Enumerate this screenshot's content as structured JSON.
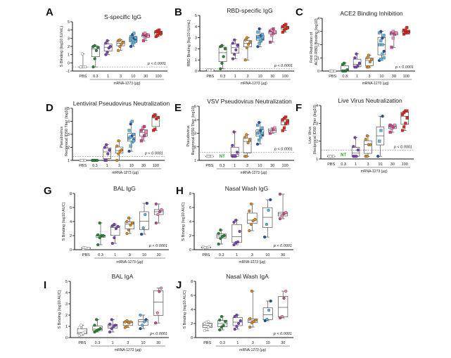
{
  "figure": {
    "colors": {
      "PBS": "#888888",
      "0.3": "#1f8a2e",
      "1": "#7b3fbf",
      "3": "#e08a1e",
      "10": "#1f4fb5",
      "10b": "#5ab4e0",
      "30": "#d6408a",
      "30b": "#f08cc0",
      "100": "#e0251b",
      "axis": "#111111",
      "threshold": "#888888"
    }
  },
  "chart_data": [
    {
      "letter": "A",
      "type": "box-scatter",
      "title": "S-specific IgG",
      "ylabel": "S Binding (log10 IU/mL)",
      "ylim": [
        -1,
        5
      ],
      "yticks": [
        -1,
        0,
        1,
        2,
        3,
        4,
        5
      ],
      "categories": [
        "PBS",
        "0.3",
        "1",
        "3",
        "10",
        "30",
        "100"
      ],
      "xlabel": "mRNA-1273 (µg)",
      "threshold": -0.5,
      "pvalue": "p < 0.0001",
      "series": [
        {
          "name": "PBS",
          "values": [
            -0.5,
            -0.5,
            -0.5,
            -0.5,
            -0.5,
            1.1
          ]
        },
        {
          "name": "0.3",
          "values": [
            -0.5,
            0.5,
            1.5,
            1.9,
            2.0,
            2.1
          ]
        },
        {
          "name": "1",
          "values": [
            1.0,
            1.3,
            1.8,
            2.0,
            2.4,
            2.7
          ]
        },
        {
          "name": "3",
          "values": [
            1.5,
            2.0,
            2.3,
            2.5,
            2.7,
            2.8
          ]
        },
        {
          "name": "10",
          "values": [
            2.0,
            2.3,
            2.5,
            2.7,
            2.8,
            2.9,
            3.0,
            3.1,
            3.2,
            3.4,
            3.6,
            2.6
          ]
        },
        {
          "name": "30",
          "values": [
            2.7,
            3.1,
            3.3,
            3.4,
            3.5,
            3.6,
            3.3,
            3.2
          ]
        },
        {
          "name": "100",
          "values": [
            3.2,
            3.4,
            3.6,
            3.7,
            3.8,
            3.9,
            4.0,
            3.5
          ]
        }
      ]
    },
    {
      "letter": "B",
      "type": "box-scatter",
      "title": "RBD-specific IgG",
      "ylabel": "RBD Binding (log10 IU/mL)",
      "ylim": [
        0,
        5
      ],
      "yticks": [
        0,
        1,
        2,
        3,
        4,
        5
      ],
      "categories": [
        "PBS",
        "0.3",
        "1",
        "3",
        "10",
        "30",
        "100"
      ],
      "xlabel": "mRNA-1273 (µg)",
      "threshold": 0.2,
      "pvalue": "p < 0.0001",
      "series": [
        {
          "name": "PBS",
          "values": [
            0.1,
            0.1,
            0.1,
            0.1,
            0.1,
            0.1
          ]
        },
        {
          "name": "0.3",
          "values": [
            0.2,
            0.7,
            1.3,
            2.0,
            2.2,
            2.3
          ]
        },
        {
          "name": "1",
          "values": [
            1.1,
            1.5,
            1.9,
            2.3,
            2.5,
            2.8
          ]
        },
        {
          "name": "3",
          "values": [
            1.0,
            2.1,
            2.4,
            2.6,
            2.8,
            3.0
          ]
        },
        {
          "name": "10",
          "values": [
            2.2,
            2.5,
            2.7,
            2.9,
            3.0,
            3.1,
            3.2,
            3.3,
            3.5,
            3.8,
            2.8,
            3.0
          ]
        },
        {
          "name": "30",
          "values": [
            2.6,
            3.2,
            3.4,
            3.5,
            3.6,
            3.7,
            3.8,
            3.5
          ]
        },
        {
          "name": "100",
          "values": [
            3.5,
            3.7,
            3.8,
            3.9,
            4.0,
            4.1,
            4.2,
            3.9
          ]
        }
      ]
    },
    {
      "letter": "C",
      "type": "box-scatter",
      "title": "ACE2 Binding Inhibition",
      "ylabel": "Fold Reduction of ACE2-RBD Binding (log10)",
      "ylim": [
        0,
        4
      ],
      "yticks": [
        0,
        1,
        2,
        3,
        4
      ],
      "categories": [
        "PBS",
        "0.3",
        "1",
        "3",
        "10",
        "30",
        "100"
      ],
      "xlabel": "mRNA-1273 (µg)",
      "threshold": null,
      "pvalue": "p < 0.0001",
      "series": [
        {
          "name": "PBS",
          "values": [
            0,
            0,
            0,
            0,
            0,
            0
          ]
        },
        {
          "name": "0.3",
          "values": [
            0,
            0,
            0,
            0.1,
            0.5,
            0.6
          ]
        },
        {
          "name": "1",
          "values": [
            0.3,
            0.3,
            0.4,
            0.6,
            1.0,
            1.3
          ]
        },
        {
          "name": "3",
          "values": [
            0.3,
            0.3,
            0.7,
            0.9,
            1.0,
            1.2
          ]
        },
        {
          "name": "10",
          "values": [
            0.8,
            0.9,
            1.3,
            1.5,
            2.0,
            2.3,
            2.5,
            2.7,
            2.9,
            3.0,
            2.0,
            1.0
          ]
        },
        {
          "name": "30",
          "values": [
            1.8,
            2.5,
            2.8,
            2.9,
            2.9,
            3.0,
            2.8,
            2.9
          ]
        },
        {
          "name": "100",
          "values": [
            2.8,
            2.9,
            3.0,
            3.0,
            3.1,
            3.1,
            3.3,
            2.9
          ]
        }
      ]
    },
    {
      "letter": "D",
      "type": "box-scatter",
      "title": "Lentiviral Pseudovirus Neutralization",
      "ylabel": "Pseudovirus Reciprocal ID50 Titer (log10)",
      "ylim": [
        1,
        5
      ],
      "yticks": [
        1,
        2,
        3,
        4,
        5
      ],
      "categories": [
        "PBS",
        "0.3",
        "1",
        "3",
        "10",
        "30",
        "100"
      ],
      "xlabel": "mRNA-1273 (µg)",
      "threshold": 1.3,
      "pvalue": "p < 0.0001",
      "series": [
        {
          "name": "PBS",
          "values": [
            1,
            1,
            1,
            1,
            1,
            1
          ]
        },
        {
          "name": "0.3",
          "values": [
            1,
            1,
            1,
            1,
            1,
            1
          ]
        },
        {
          "name": "1",
          "values": [
            1,
            1,
            1.5,
            1.8,
            2.0,
            2.2
          ]
        },
        {
          "name": "3",
          "values": [
            1,
            1.5,
            1.7,
            1.8,
            2.1,
            2.5
          ]
        },
        {
          "name": "10",
          "values": [
            1.7,
            2.1,
            2.4,
            2.6,
            2.7,
            2.8,
            2.9,
            3.0,
            3.3,
            3.8,
            4.0,
            2.5
          ]
        },
        {
          "name": "30",
          "values": [
            2.5,
            2.7,
            2.9,
            3.1,
            3.3,
            3.5,
            3.6,
            3.2
          ]
        },
        {
          "name": "100",
          "values": [
            3.3,
            3.4,
            4.2,
            4.3,
            4.4,
            4.5
          ]
        }
      ]
    },
    {
      "letter": "E",
      "type": "box-scatter",
      "title": "VSV Pseudovirus Neutralization",
      "ylabel": "Pseudovirus Reciprocal ID50 Titer (log10)",
      "ylim": [
        1,
        5
      ],
      "yticks": [
        1,
        2,
        3,
        4,
        5
      ],
      "categories": [
        "PBS",
        "0.3",
        "1",
        "3",
        "10",
        "30",
        "100"
      ],
      "xlabel": "mRNA-1273 (µg)",
      "threshold": 1.6,
      "pvalue": "p < 0.0001",
      "not_tested": [
        "0.3"
      ],
      "nt_label": "NT",
      "series": [
        {
          "name": "PBS",
          "values": [
            1.3,
            1.3,
            1.3,
            1.3,
            1.3,
            1.3
          ]
        },
        {
          "name": "0.3",
          "values": []
        },
        {
          "name": "1",
          "values": [
            1.3,
            1.3,
            1.3,
            1.6,
            2.1,
            3.1
          ]
        },
        {
          "name": "3",
          "values": [
            1.3,
            1.3,
            2.3,
            2.5,
            2.7,
            2.9
          ]
        },
        {
          "name": "10",
          "values": [
            2.2,
            2.5,
            2.7,
            2.9,
            3.0,
            3.1,
            3.2,
            3.4,
            3.6,
            3.8,
            2.8,
            3.0
          ]
        },
        {
          "name": "30",
          "values": [
            3.0,
            3.1,
            3.3,
            3.4
          ]
        },
        {
          "name": "100",
          "values": [
            3.2,
            3.4,
            3.7,
            3.9,
            4.0,
            4.1,
            4.2,
            3.8
          ]
        }
      ]
    },
    {
      "letter": "F",
      "type": "box-scatter",
      "title": "Live Virus Neutralization",
      "ylabel": "Live Virus Reciprocal ID50 Titer (log10)",
      "ylim": [
        1,
        4
      ],
      "yticks": [
        1,
        2,
        3,
        4
      ],
      "categories": [
        "PBS",
        "0.3",
        "1",
        "3",
        "10",
        "30",
        "100"
      ],
      "xlabel": "mRNA-1273 (µg)",
      "threshold": 1.5,
      "pvalue": "p < 0.0001",
      "not_tested": [
        "0.3"
      ],
      "nt_label": "NT",
      "series": [
        {
          "name": "PBS",
          "values": [
            1.15,
            1.15,
            1.15,
            1.15,
            1.15,
            1.15
          ]
        },
        {
          "name": "0.3",
          "values": []
        },
        {
          "name": "1",
          "values": [
            1.15,
            1.15,
            1.15,
            1.5,
            1.7,
            2.2
          ]
        },
        {
          "name": "3",
          "values": [
            1.15,
            1.15,
            1.8,
            1.8,
            2.1,
            2.3
          ]
        },
        {
          "name": "10",
          "values": [
            1.15,
            2.0,
            2.6,
            3.4
          ]
        },
        {
          "name": "30",
          "values": [
            2.5,
            2.7,
            2.8,
            2.9,
            2.9
          ]
        },
        {
          "name": "100",
          "values": [
            2.6,
            2.8,
            3.0,
            3.3,
            3.5,
            3.6,
            3.7,
            3.7
          ]
        }
      ]
    },
    {
      "letter": "G",
      "type": "box-scatter",
      "title": "BAL IgG",
      "ylabel": "S Binding (log10 AUC)",
      "ylim": [
        0,
        8
      ],
      "yticks": [
        0,
        2,
        4,
        6,
        8
      ],
      "categories": [
        "PBS",
        "0.3",
        "1",
        "3",
        "10",
        "30"
      ],
      "xlabel": "mRNA-1273 (µg)",
      "threshold": null,
      "pvalue": "p < 0.0001",
      "series": [
        {
          "name": "PBS",
          "values": [
            0.1,
            0.2,
            0.2,
            0.2,
            0.3,
            0.3
          ]
        },
        {
          "name": "0.3",
          "values": [
            0.7,
            1.7,
            2.0,
            2.0,
            2.1,
            3.8
          ]
        },
        {
          "name": "1",
          "values": [
            0.9,
            1.7,
            3.0,
            3.3,
            3.4,
            3.6
          ]
        },
        {
          "name": "3",
          "values": [
            2.3,
            2.8,
            3.5,
            3.8,
            4.0,
            4.5
          ]
        },
        {
          "name": "10",
          "values": [
            2.2,
            3.1,
            5.0,
            6.6
          ]
        },
        {
          "name": "30",
          "values": [
            3.8,
            5.0,
            5.4,
            5.7,
            6.5
          ]
        }
      ]
    },
    {
      "letter": "H",
      "type": "box-scatter",
      "title": "Nasal Wash IgG",
      "ylabel": "S Binding (log10 AUC)",
      "ylim": [
        0,
        8
      ],
      "yticks": [
        0,
        2,
        4,
        6,
        8
      ],
      "categories": [
        "PBS",
        "0.3",
        "1",
        "3",
        "10",
        "30"
      ],
      "xlabel": "mRNA-1273 (µg)",
      "threshold": null,
      "pvalue": "p < 0.0001",
      "series": [
        {
          "name": "PBS",
          "values": [
            0.2,
            0.3,
            0.3,
            0.4,
            0.4,
            0.3
          ]
        },
        {
          "name": "0.3",
          "values": [
            0.8,
            1.6,
            1.9,
            2.0,
            2.3,
            2.8
          ]
        },
        {
          "name": "1",
          "values": [
            0.7,
            1.0,
            1.1,
            2.6,
            3.9,
            4.2
          ]
        },
        {
          "name": "3",
          "values": [
            2.7,
            3.6,
            4.1,
            4.3,
            5.5,
            6.5
          ]
        },
        {
          "name": "10",
          "values": [
            1.8,
            3.6,
            5.6,
            7.1
          ]
        },
        {
          "name": "30",
          "values": [
            4.4,
            4.8,
            5.1,
            5.3,
            7.9
          ]
        }
      ]
    },
    {
      "letter": "I",
      "type": "box-scatter",
      "title": "BAL IgA",
      "ylabel": "S Binding (log10 AUC)",
      "ylim": [
        0,
        5
      ],
      "yticks": [
        0,
        1,
        2,
        3,
        4,
        5
      ],
      "categories": [
        "PBS",
        "0.3",
        "1",
        "3",
        "10",
        "30"
      ],
      "xlabel": "mRNA-1273 (µg)",
      "threshold": null,
      "pvalue": "p< 0.0001",
      "series": [
        {
          "name": "PBS",
          "values": [
            0.2,
            0.3,
            0.4,
            0.5,
            0.9,
            1.1
          ]
        },
        {
          "name": "0.3",
          "values": [
            0.5,
            0.6,
            0.7,
            0.8,
            1.1,
            1.6
          ]
        },
        {
          "name": "1",
          "values": [
            0.5,
            0.8,
            1.0,
            1.1,
            1.2,
            1.6
          ]
        },
        {
          "name": "3",
          "values": [
            0.9,
            1.0,
            1.3,
            1.4,
            1.4,
            1.5
          ]
        },
        {
          "name": "10",
          "values": [
            0.8,
            1.1,
            1.4,
            1.6,
            2.0
          ]
        },
        {
          "name": "30",
          "values": [
            1.3,
            2.2,
            4.1,
            4.4
          ]
        }
      ]
    },
    {
      "letter": "J",
      "type": "box-scatter",
      "title": "Nasal Wash IgA",
      "ylabel": "S Binding (log10 AUC)",
      "ylim": [
        0,
        8
      ],
      "yticks": [
        0,
        2,
        4,
        6,
        8
      ],
      "categories": [
        "PBS",
        "0.3",
        "1",
        "3",
        "10",
        "30"
      ],
      "xlabel": "mRNA-1273 (µg)",
      "threshold": null,
      "pvalue": "p < 0.0001",
      "series": [
        {
          "name": "PBS",
          "values": [
            1.0,
            1.2,
            1.5,
            1.7,
            2.0,
            2.2,
            2.3,
            1.8
          ]
        },
        {
          "name": "0.3",
          "values": [
            1.1,
            1.5,
            1.7,
            2.3,
            2.5,
            3.0
          ]
        },
        {
          "name": "1",
          "values": [
            1.2,
            1.6,
            2.0,
            2.4,
            3.0,
            3.2
          ]
        },
        {
          "name": "3",
          "values": [
            1.5,
            2.1,
            2.3,
            2.5,
            2.7,
            6.6
          ]
        },
        {
          "name": "10",
          "values": [
            2.4,
            2.6,
            3.9,
            5.2
          ]
        },
        {
          "name": "30",
          "values": [
            2.8,
            3.0,
            5.6,
            6.6
          ]
        }
      ]
    }
  ]
}
